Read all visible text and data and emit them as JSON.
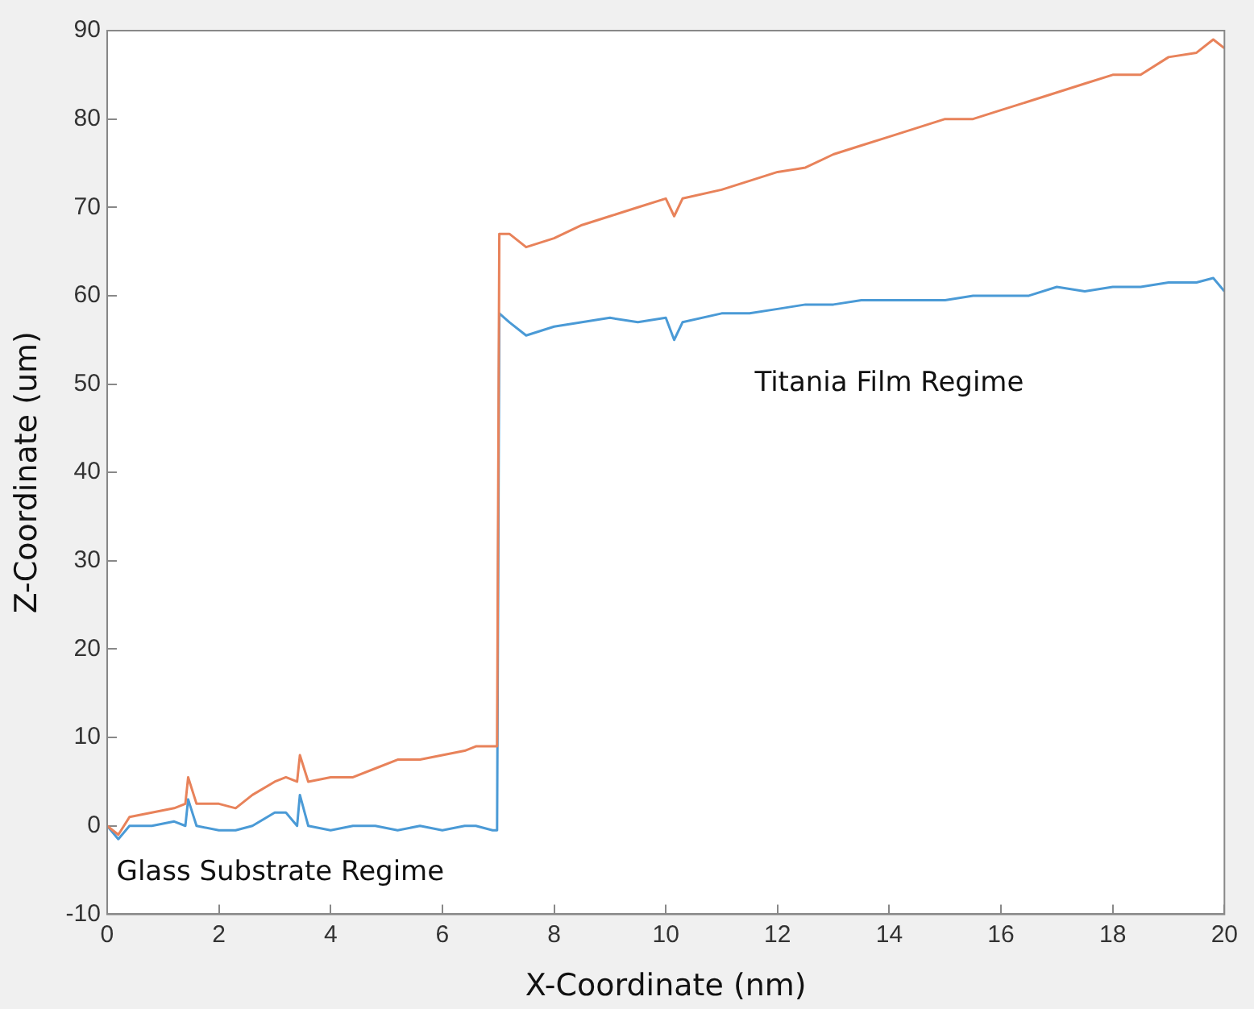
{
  "chart_data": {
    "type": "line",
    "xlabel": "X-Coordinate (nm)",
    "ylabel": "Z-Coordinate (um)",
    "xlim": [
      0,
      20
    ],
    "xticks": [
      0,
      2,
      4,
      6,
      8,
      10,
      12,
      14,
      16,
      18,
      20
    ],
    "ylim": [
      -10,
      90
    ],
    "yticks": [
      -10,
      0,
      10,
      20,
      30,
      40,
      50,
      60,
      70,
      80,
      90
    ],
    "grid": false,
    "legend": false,
    "marker": "none",
    "line_style": "solid",
    "x": [
      0,
      0.2,
      0.4,
      0.8,
      1.2,
      1.4,
      1.45,
      1.6,
      2.0,
      2.3,
      2.6,
      3.0,
      3.2,
      3.4,
      3.45,
      3.6,
      4.0,
      4.4,
      4.8,
      5.2,
      5.6,
      6.0,
      6.4,
      6.6,
      6.9,
      6.98,
      7.02,
      7.2,
      7.5,
      8,
      8.5,
      9,
      9.5,
      10,
      10.15,
      10.3,
      11,
      11.5,
      12,
      12.5,
      13,
      13.5,
      14,
      14.5,
      15,
      15.5,
      16,
      16.5,
      17,
      17.5,
      18,
      18.5,
      19,
      19.5,
      19.8,
      20
    ],
    "series": [
      {
        "color": "#e8825a",
        "values": [
          0,
          -1,
          1,
          1.5,
          2,
          2.5,
          5.5,
          2.5,
          2.5,
          2,
          3.5,
          5,
          5.5,
          5,
          8,
          5,
          5.5,
          5.5,
          6.5,
          7.5,
          7.5,
          8,
          8.5,
          9,
          9,
          9,
          67,
          67,
          65.5,
          66.5,
          68,
          69,
          70,
          71,
          69,
          71,
          72,
          73,
          74,
          74.5,
          76,
          77,
          78,
          79,
          80,
          80,
          81,
          82,
          83,
          84,
          85,
          85,
          87,
          87.5,
          89,
          88
        ]
      },
      {
        "color": "#4a9ad6",
        "values": [
          0,
          -1.5,
          0,
          0,
          0.5,
          0,
          3,
          0,
          -0.5,
          -0.5,
          0,
          1.5,
          1.5,
          0,
          3.5,
          0,
          -0.5,
          0,
          0,
          -0.5,
          0,
          -0.5,
          0,
          0,
          -0.5,
          -0.5,
          58,
          57,
          55.5,
          56.5,
          57,
          57.5,
          57,
          57.5,
          55,
          57,
          58,
          58,
          58.5,
          59,
          59,
          59.5,
          59.5,
          59.5,
          59.5,
          60,
          60,
          60,
          61,
          60.5,
          61,
          61,
          61.5,
          61.5,
          62,
          60.5
        ]
      }
    ],
    "annotations": [
      "Titania Film Regime",
      "Glass Substrate Regime"
    ]
  }
}
